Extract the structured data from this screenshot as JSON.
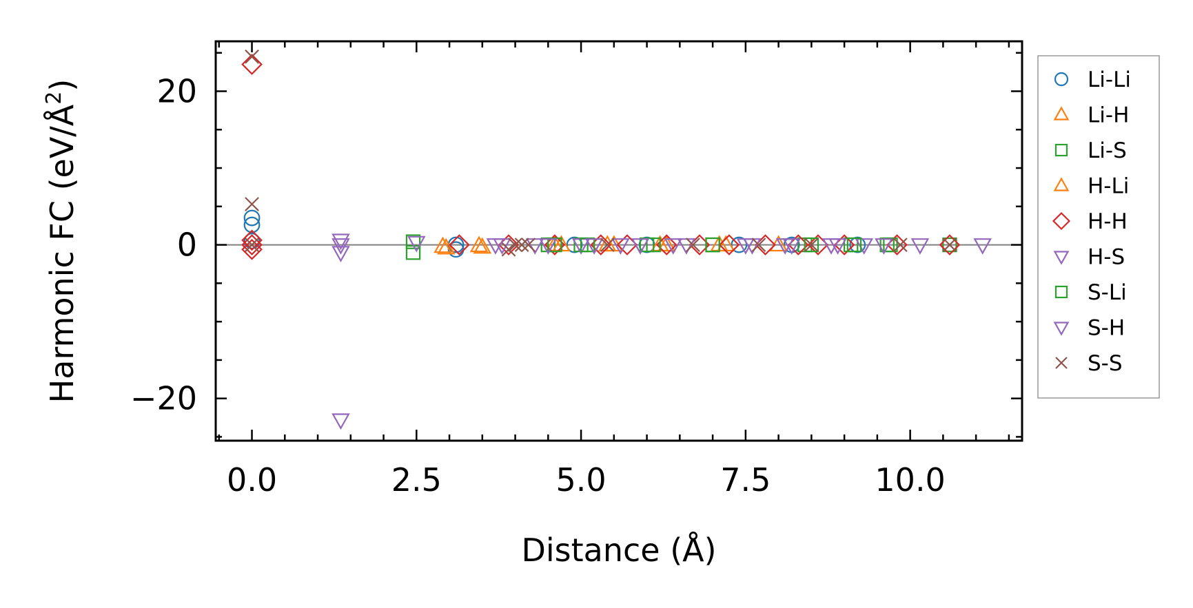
{
  "chart_data": {
    "type": "scatter",
    "title": "",
    "xlabel": "Distance (Å)",
    "ylabel_main": "Harmonic FC (eV/Å",
    "ylabel_sup": "2",
    "ylabel_close": ")",
    "xlim": [
      -0.55,
      11.7
    ],
    "ylim": [
      -25.5,
      26.5
    ],
    "xticks": [
      0.0,
      2.5,
      5.0,
      7.5,
      10.0
    ],
    "xtick_labels": [
      "0.0",
      "2.5",
      "5.0",
      "7.5",
      "10.0"
    ],
    "yticks": [
      -20,
      0,
      20
    ],
    "ytick_labels": [
      "−20",
      "0",
      "20"
    ],
    "zero_line": 0,
    "legend_position": "outside-right",
    "colors": {
      "blue": "#1f77b4",
      "orange": "#ff7f0e",
      "green": "#2ca02c",
      "red": "#d62728",
      "purple": "#9467bd",
      "brown": "#8c564b",
      "zero_line": "#808080"
    },
    "series": [
      {
        "name": "Li-Li",
        "marker": "circle",
        "color": "#1f77b4",
        "x": [
          0,
          0,
          0,
          3.1,
          3.1,
          4.9,
          6.0,
          7.4,
          8.2,
          9.2
        ],
        "y": [
          3.5,
          2.6,
          0.5,
          0,
          -0.6,
          0,
          0,
          0,
          0,
          0
        ]
      },
      {
        "name": "Li-H",
        "marker": "triangle-up",
        "color": "#ff7f0e",
        "x": [
          2.9,
          3.45,
          4.6,
          5.4,
          6.2,
          7.1,
          8.0
        ],
        "y": [
          -0.2,
          -0.1,
          0,
          0,
          0,
          0,
          0
        ]
      },
      {
        "name": "Li-S",
        "marker": "square",
        "color": "#2ca02c",
        "x": [
          2.45,
          2.45,
          4.5,
          5.0,
          6.0,
          7.0,
          8.4,
          9.1,
          9.7,
          10.6
        ],
        "y": [
          0.4,
          -1.0,
          0,
          0,
          0,
          0,
          0,
          0,
          0,
          0
        ]
      },
      {
        "name": "H-Li",
        "marker": "triangle-up",
        "color": "#ff7f0e",
        "x": [
          2.95,
          3.5,
          4.7,
          5.5,
          6.3,
          7.2
        ],
        "y": [
          -0.4,
          -0.3,
          0,
          0,
          0,
          0
        ]
      },
      {
        "name": "H-H",
        "marker": "diamond",
        "color": "#d62728",
        "x": [
          0,
          0,
          0,
          0,
          3.15,
          3.9,
          4.6,
          5.3,
          5.7,
          6.3,
          6.8,
          7.25,
          7.8,
          8.3,
          8.6,
          9.0,
          9.8,
          10.6
        ],
        "y": [
          23.5,
          0.6,
          0,
          -0.6,
          0,
          0,
          0,
          0,
          0,
          0,
          0,
          0,
          0,
          0,
          0,
          0,
          0,
          0
        ]
      },
      {
        "name": "H-S",
        "marker": "triangle-down",
        "color": "#9467bd",
        "x": [
          1.35,
          1.35,
          1.35,
          2.5,
          3.7,
          4.3,
          5.0,
          5.6,
          6.4,
          7.5,
          8.1,
          8.9,
          9.3
        ],
        "y": [
          0.6,
          0,
          -1.0,
          0.3,
          0,
          0,
          0,
          0,
          0,
          0,
          0,
          0,
          0
        ]
      },
      {
        "name": "S-Li",
        "marker": "square",
        "color": "#2ca02c",
        "x": [
          4.6,
          5.1,
          6.1,
          7.0,
          8.5,
          9.15,
          9.65
        ],
        "y": [
          0,
          0,
          0,
          0,
          0,
          0,
          0
        ]
      },
      {
        "name": "S-H",
        "marker": "triangle-down",
        "color": "#9467bd",
        "x": [
          1.35,
          3.8,
          4.5,
          5.2,
          5.9,
          6.6,
          7.6,
          8.2,
          8.8,
          9.6,
          10.15,
          11.1
        ],
        "y": [
          -22.8,
          0,
          0,
          0,
          0,
          0,
          0,
          0,
          0,
          0,
          0,
          0
        ]
      },
      {
        "name": "S-S",
        "marker": "x",
        "color": "#8c564b",
        "x": [
          0,
          0,
          0,
          3.9,
          4.0,
          4.1,
          4.2,
          5.4,
          6.7,
          7.7,
          8.5,
          9.85,
          10.6
        ],
        "y": [
          24.5,
          5.3,
          0,
          -0.6,
          0,
          0,
          0,
          0,
          0,
          0,
          0,
          0,
          0
        ]
      }
    ]
  }
}
